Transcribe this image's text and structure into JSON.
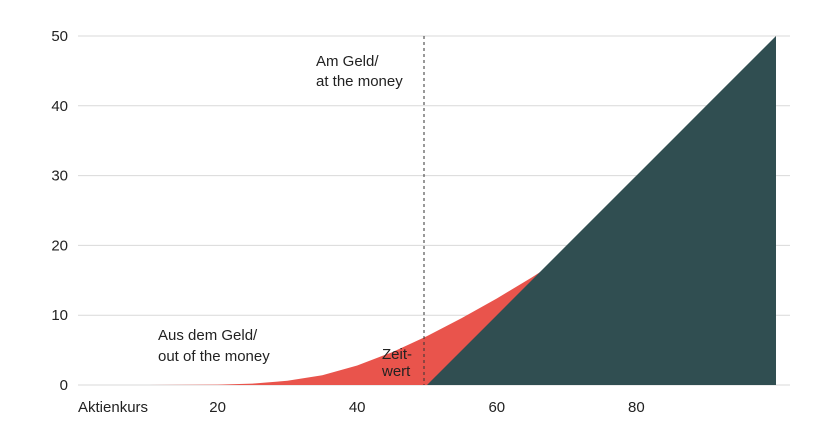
{
  "chart_data": {
    "type": "area",
    "xlabel": "Aktienkurs",
    "ylabel": "",
    "xlim": [
      0,
      100
    ],
    "ylim": [
      0,
      50
    ],
    "x_ticks": [
      20,
      40,
      60,
      80
    ],
    "y_ticks": [
      0,
      10,
      20,
      30,
      40,
      50
    ],
    "grid": true,
    "strike": 50,
    "series": [
      {
        "color": "#e9544c",
        "x": [
          0,
          10,
          20,
          25,
          30,
          35,
          40,
          45,
          50,
          55,
          60,
          65,
          70,
          75,
          80,
          85,
          90,
          95,
          100
        ],
        "values": [
          0,
          0,
          0.05,
          0.2,
          0.6,
          1.4,
          2.8,
          4.7,
          7.0,
          9.6,
          12.4,
          15.4,
          18.6,
          22.0,
          25.6,
          29.5,
          33.5,
          37.7,
          50
        ]
      },
      {
        "color": "#304e51",
        "x": [
          0,
          50,
          60,
          70,
          80,
          90,
          100
        ],
        "values": [
          0,
          0,
          10,
          20,
          30,
          40,
          50
        ]
      }
    ],
    "annotations": {
      "atm_line1": "Am Geld/",
      "atm_line2": "at the money",
      "otm_line1": "Aus dem Geld/",
      "otm_line2": "out of the money",
      "time_value_line1": "Zeit-",
      "time_value_line2": "wert"
    }
  }
}
